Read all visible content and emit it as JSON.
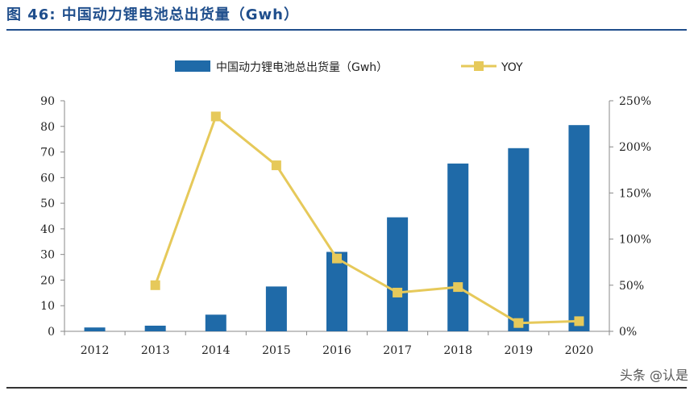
{
  "figure_title": "图 46: 中国动力锂电池总出货量（Gwh）",
  "watermark": "头条 @认是",
  "colors": {
    "bar": "#1f6aa8",
    "line": "#e6c95a",
    "title": "#1f4e8c"
  },
  "chart_data": {
    "type": "bar",
    "categories": [
      "2012",
      "2013",
      "2014",
      "2015",
      "2016",
      "2017",
      "2018",
      "2019",
      "2020"
    ],
    "series": [
      {
        "name": "中国动力锂电池总出货量（Gwh）",
        "type": "bar",
        "axis": "left",
        "values": [
          1.5,
          2.2,
          6.5,
          17.5,
          31.0,
          44.5,
          65.5,
          71.5,
          80.5
        ]
      },
      {
        "name": "YOY",
        "type": "line",
        "axis": "right",
        "values": [
          null,
          50,
          233,
          180,
          79,
          42,
          48,
          9,
          11
        ]
      }
    ],
    "ylim": [
      0,
      90
    ],
    "y_ticks": [
      "0",
      "10",
      "20",
      "30",
      "40",
      "50",
      "60",
      "70",
      "80",
      "90"
    ],
    "y2lim": [
      0,
      250
    ],
    "y2_ticks": [
      "0%",
      "50%",
      "100%",
      "150%",
      "200%",
      "250%"
    ],
    "legend_position": "top-center",
    "grid": false
  }
}
